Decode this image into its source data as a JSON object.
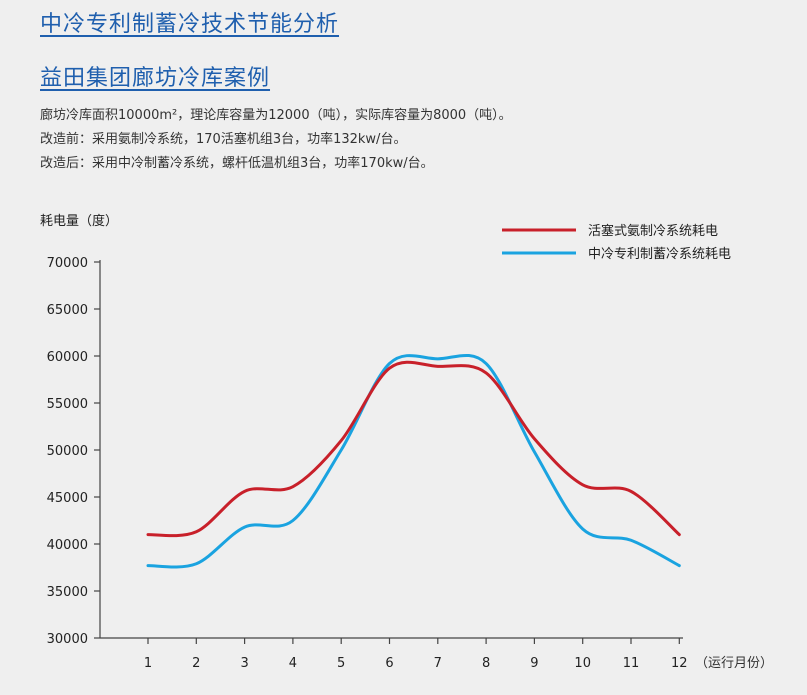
{
  "header": {
    "title": "中冷专利制蓄冷技术节能分析",
    "subtitle": "益田集团廊坊冷库案例"
  },
  "description": {
    "line1": "廊坊冷库面积10000m²，理论库容量为12000（吨），实际库容量为8000（吨）。",
    "line2": "改造前：采用氨制冷系统，170活塞机组3台，功率132kw/台。",
    "line3": "改造后：采用中冷制蓄冷系统，螺杆低温机组3台，功率170kw/台。"
  },
  "chart_data": {
    "type": "line",
    "ylabel": "耗电量（度）",
    "xlabel": "（运行月份）",
    "x": [
      1,
      2,
      3,
      4,
      5,
      6,
      7,
      8,
      9,
      10,
      11,
      12
    ],
    "ylim": [
      30000,
      70000
    ],
    "yticks": [
      30000,
      35000,
      40000,
      45000,
      50000,
      55000,
      60000,
      65000,
      70000
    ],
    "grid": false,
    "legend_position": "top-right",
    "series": [
      {
        "name": "活塞式氨制冷系统耗电",
        "color": "#c8202a",
        "values": [
          41000,
          41300,
          45600,
          46100,
          51000,
          58700,
          58900,
          58200,
          51200,
          46300,
          45600,
          41000
        ]
      },
      {
        "name": "中冷专利制蓄冷系统耗电",
        "color": "#1aa3e0",
        "values": [
          37700,
          37900,
          41800,
          42500,
          50000,
          59200,
          59700,
          59200,
          49800,
          41600,
          40400,
          37700
        ]
      }
    ]
  }
}
